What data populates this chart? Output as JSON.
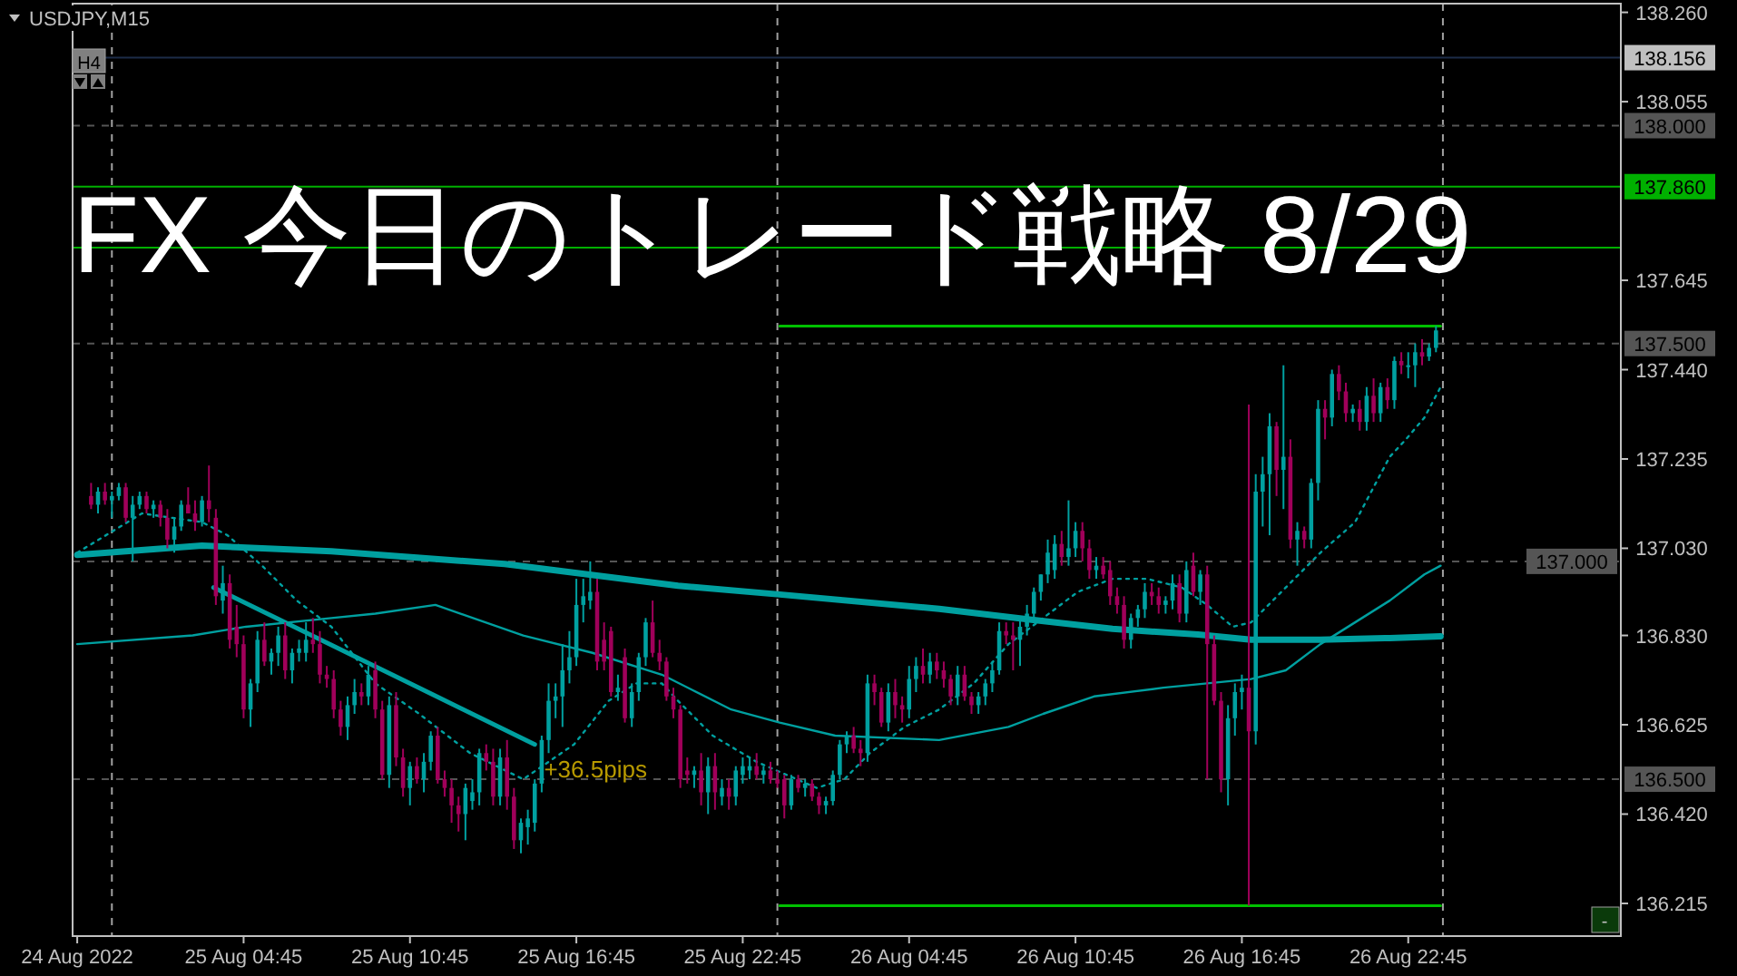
{
  "chart_data": {
    "type": "candlestick",
    "title": "FX 今日のトレード戦略 8/29",
    "subtitle": "USDJPY,M15",
    "xlim": [
      "2022-08-24T22:35",
      "2022-08-27T06:25"
    ],
    "ylim": [
      136.14,
      138.28
    ],
    "xticks": [
      {
        "value": "2022-08-24T22:45",
        "label": "24 Aug 2022"
      },
      {
        "value": "2022-08-25T04:45",
        "label": "25 Aug 04:45"
      },
      {
        "value": "2022-08-25T10:45",
        "label": "25 Aug 10:45"
      },
      {
        "value": "2022-08-25T16:45",
        "label": "25 Aug 16:45"
      },
      {
        "value": "2022-08-25T22:45",
        "label": "25 Aug 22:45"
      },
      {
        "value": "2022-08-26T04:45",
        "label": "26 Aug 04:45"
      },
      {
        "value": "2022-08-26T10:45",
        "label": "26 Aug 10:45"
      },
      {
        "value": "2022-08-26T16:45",
        "label": "26 Aug 16:45"
      },
      {
        "value": "2022-08-26T22:45",
        "label": "26 Aug 22:45"
      }
    ],
    "yticks": [
      {
        "value": 136.215,
        "label": "136.215"
      },
      {
        "value": 136.42,
        "label": "136.420"
      },
      {
        "value": 136.625,
        "label": "136.625"
      },
      {
        "value": 136.83,
        "label": "136.830"
      },
      {
        "value": 137.03,
        "label": "137.030"
      },
      {
        "value": 137.235,
        "label": "137.235"
      },
      {
        "value": 137.44,
        "label": "137.440"
      },
      {
        "value": 137.645,
        "label": "137.645"
      },
      {
        "value": 138.055,
        "label": "138.055"
      },
      {
        "value": 138.26,
        "label": "138.260"
      }
    ],
    "x": [
      "2022-08-24T23:15",
      "2022-08-24T23:30",
      "2022-08-24T23:45",
      "2022-08-25T00:00",
      "2022-08-25T00:15",
      "2022-08-25T00:30",
      "2022-08-25T00:45",
      "2022-08-25T01:00",
      "2022-08-25T01:15",
      "2022-08-25T01:30",
      "2022-08-25T01:45",
      "2022-08-25T02:00",
      "2022-08-25T02:15",
      "2022-08-25T02:30",
      "2022-08-25T02:45",
      "2022-08-25T03:00",
      "2022-08-25T03:15",
      "2022-08-25T03:30",
      "2022-08-25T03:45",
      "2022-08-25T04:00",
      "2022-08-25T04:15",
      "2022-08-25T04:30",
      "2022-08-25T04:45",
      "2022-08-25T05:00",
      "2022-08-25T05:15",
      "2022-08-25T05:30",
      "2022-08-25T05:45",
      "2022-08-25T06:00",
      "2022-08-25T06:15",
      "2022-08-25T06:30",
      "2022-08-25T06:45",
      "2022-08-25T07:00",
      "2022-08-25T07:15",
      "2022-08-25T07:30",
      "2022-08-25T07:45",
      "2022-08-25T08:00",
      "2022-08-25T08:15",
      "2022-08-25T08:30",
      "2022-08-25T08:45",
      "2022-08-25T09:00",
      "2022-08-25T09:15",
      "2022-08-25T09:30",
      "2022-08-25T09:45",
      "2022-08-25T10:00",
      "2022-08-25T10:15",
      "2022-08-25T10:30",
      "2022-08-25T10:45",
      "2022-08-25T11:00",
      "2022-08-25T11:15",
      "2022-08-25T11:30",
      "2022-08-25T11:45",
      "2022-08-25T12:00",
      "2022-08-25T12:15",
      "2022-08-25T12:30",
      "2022-08-25T12:45",
      "2022-08-25T13:00",
      "2022-08-25T13:15",
      "2022-08-25T13:30",
      "2022-08-25T13:45",
      "2022-08-25T14:00",
      "2022-08-25T14:15",
      "2022-08-25T14:30",
      "2022-08-25T14:45",
      "2022-08-25T15:00",
      "2022-08-25T15:15",
      "2022-08-25T15:30",
      "2022-08-25T15:45",
      "2022-08-25T16:00",
      "2022-08-25T16:15",
      "2022-08-25T16:30",
      "2022-08-25T16:45",
      "2022-08-25T17:00",
      "2022-08-25T17:15",
      "2022-08-25T17:30",
      "2022-08-25T17:45",
      "2022-08-25T18:00",
      "2022-08-25T18:15",
      "2022-08-25T18:30",
      "2022-08-25T18:45",
      "2022-08-25T19:00",
      "2022-08-25T19:15",
      "2022-08-25T19:30",
      "2022-08-25T19:45",
      "2022-08-25T20:00",
      "2022-08-25T20:15",
      "2022-08-25T20:30",
      "2022-08-25T20:45",
      "2022-08-25T21:00",
      "2022-08-25T21:15",
      "2022-08-25T21:30",
      "2022-08-25T21:45",
      "2022-08-25T22:00",
      "2022-08-25T22:15",
      "2022-08-25T22:30",
      "2022-08-25T22:45",
      "2022-08-25T23:00",
      "2022-08-25T23:15",
      "2022-08-25T23:30",
      "2022-08-25T23:45",
      "2022-08-26T00:00",
      "2022-08-26T00:15",
      "2022-08-26T00:30",
      "2022-08-26T00:45",
      "2022-08-26T01:00",
      "2022-08-26T01:15",
      "2022-08-26T01:30",
      "2022-08-26T01:45",
      "2022-08-26T02:00",
      "2022-08-26T02:15",
      "2022-08-26T02:30",
      "2022-08-26T02:45",
      "2022-08-26T03:00",
      "2022-08-26T03:15",
      "2022-08-26T03:30",
      "2022-08-26T03:45",
      "2022-08-26T04:00",
      "2022-08-26T04:15",
      "2022-08-26T04:30",
      "2022-08-26T04:45",
      "2022-08-26T05:00",
      "2022-08-26T05:15",
      "2022-08-26T05:30",
      "2022-08-26T05:45",
      "2022-08-26T06:00",
      "2022-08-26T06:15",
      "2022-08-26T06:30",
      "2022-08-26T06:45",
      "2022-08-26T07:00",
      "2022-08-26T07:15",
      "2022-08-26T07:30",
      "2022-08-26T07:45",
      "2022-08-26T08:00",
      "2022-08-26T08:15",
      "2022-08-26T08:30",
      "2022-08-26T08:45",
      "2022-08-26T09:00",
      "2022-08-26T09:15",
      "2022-08-26T09:30",
      "2022-08-26T09:45",
      "2022-08-26T10:00",
      "2022-08-26T10:15",
      "2022-08-26T10:30",
      "2022-08-26T10:45",
      "2022-08-26T11:00",
      "2022-08-26T11:15",
      "2022-08-26T11:30",
      "2022-08-26T11:45",
      "2022-08-26T12:00",
      "2022-08-26T12:15",
      "2022-08-26T12:30",
      "2022-08-26T12:45",
      "2022-08-26T13:00",
      "2022-08-26T13:15",
      "2022-08-26T13:30",
      "2022-08-26T13:45",
      "2022-08-26T14:00",
      "2022-08-26T14:15",
      "2022-08-26T14:30",
      "2022-08-26T14:45",
      "2022-08-26T15:00",
      "2022-08-26T15:15",
      "2022-08-26T15:30",
      "2022-08-26T15:45",
      "2022-08-26T16:00",
      "2022-08-26T16:15",
      "2022-08-26T16:30",
      "2022-08-26T16:45",
      "2022-08-26T17:00",
      "2022-08-26T17:15",
      "2022-08-26T17:30",
      "2022-08-26T17:45",
      "2022-08-26T18:00",
      "2022-08-26T18:15",
      "2022-08-26T18:30",
      "2022-08-26T18:45",
      "2022-08-26T19:00",
      "2022-08-26T19:15",
      "2022-08-26T19:30",
      "2022-08-26T19:45",
      "2022-08-26T20:00",
      "2022-08-26T20:15",
      "2022-08-26T20:30",
      "2022-08-26T20:45",
      "2022-08-26T21:00",
      "2022-08-26T21:15",
      "2022-08-26T21:30",
      "2022-08-26T21:45",
      "2022-08-26T22:00",
      "2022-08-26T22:15",
      "2022-08-26T22:30",
      "2022-08-26T22:45",
      "2022-08-26T23:00",
      "2022-08-26T23:15",
      "2022-08-26T23:30",
      "2022-08-26T23:45"
    ],
    "ohlc": [
      [
        137.15,
        137.18,
        137.12,
        137.13
      ],
      [
        137.13,
        137.17,
        137.11,
        137.16
      ],
      [
        137.16,
        137.18,
        137.13,
        137.14
      ],
      [
        137.14,
        137.16,
        137.1,
        137.15
      ],
      [
        137.15,
        137.18,
        137.14,
        137.17
      ],
      [
        137.17,
        137.18,
        137.09,
        137.1
      ],
      [
        137.1,
        137.15,
        137.0,
        137.13
      ],
      [
        137.13,
        137.16,
        137.12,
        137.15
      ],
      [
        137.15,
        137.16,
        137.11,
        137.12
      ],
      [
        137.12,
        137.14,
        137.1,
        137.13
      ],
      [
        137.13,
        137.14,
        137.08,
        137.1
      ],
      [
        137.1,
        137.12,
        137.03,
        137.05
      ],
      [
        137.05,
        137.1,
        137.02,
        137.08
      ],
      [
        137.08,
        137.14,
        137.07,
        137.13
      ],
      [
        137.13,
        137.17,
        137.11,
        137.11
      ],
      [
        137.11,
        137.14,
        137.07,
        137.09
      ],
      [
        137.09,
        137.15,
        137.08,
        137.14
      ],
      [
        137.14,
        137.22,
        137.09,
        137.12
      ],
      [
        137.1,
        137.12,
        136.9,
        136.92
      ],
      [
        136.91,
        136.99,
        136.88,
        136.95
      ],
      [
        136.95,
        136.97,
        136.8,
        136.82
      ],
      [
        136.85,
        136.9,
        136.78,
        136.81
      ],
      [
        136.81,
        136.83,
        136.64,
        136.66
      ],
      [
        136.66,
        136.73,
        136.62,
        136.72
      ],
      [
        136.72,
        136.84,
        136.7,
        136.82
      ],
      [
        136.82,
        136.86,
        136.76,
        136.77
      ],
      [
        136.77,
        136.8,
        136.74,
        136.79
      ],
      [
        136.79,
        136.85,
        136.76,
        136.83
      ],
      [
        136.83,
        136.86,
        136.73,
        136.75
      ],
      [
        136.75,
        136.8,
        136.72,
        136.79
      ],
      [
        136.79,
        136.82,
        136.77,
        136.8
      ],
      [
        136.79,
        136.86,
        136.77,
        136.82
      ],
      [
        136.82,
        136.87,
        136.79,
        136.81
      ],
      [
        136.81,
        136.84,
        136.72,
        136.74
      ],
      [
        136.74,
        136.76,
        136.71,
        136.73
      ],
      [
        136.73,
        136.75,
        136.64,
        136.66
      ],
      [
        136.66,
        136.68,
        136.6,
        136.62
      ],
      [
        136.62,
        136.69,
        136.59,
        136.67
      ],
      [
        136.67,
        136.73,
        136.65,
        136.7
      ],
      [
        136.7,
        136.72,
        136.67,
        136.69
      ],
      [
        136.69,
        136.76,
        136.67,
        136.74
      ],
      [
        136.75,
        136.77,
        136.64,
        136.66
      ],
      [
        136.66,
        136.68,
        136.5,
        136.51
      ],
      [
        136.51,
        136.69,
        136.48,
        136.67
      ],
      [
        136.67,
        136.7,
        136.53,
        136.55
      ],
      [
        136.55,
        136.57,
        136.46,
        136.48
      ],
      [
        136.48,
        136.54,
        136.44,
        136.53
      ],
      [
        136.53,
        136.55,
        136.49,
        136.5
      ],
      [
        136.5,
        136.56,
        136.47,
        136.54
      ],
      [
        136.54,
        136.61,
        136.52,
        136.6
      ],
      [
        136.6,
        136.62,
        136.49,
        136.5
      ],
      [
        136.5,
        136.52,
        136.46,
        136.48
      ],
      [
        136.48,
        136.5,
        136.4,
        136.44
      ],
      [
        136.44,
        136.46,
        136.38,
        136.42
      ],
      [
        136.42,
        136.49,
        136.36,
        136.48
      ],
      [
        136.45,
        136.5,
        136.43,
        136.47
      ],
      [
        136.47,
        136.57,
        136.44,
        136.56
      ],
      [
        136.56,
        136.58,
        136.52,
        136.54
      ],
      [
        136.54,
        136.57,
        136.44,
        136.46
      ],
      [
        136.46,
        136.57,
        136.44,
        136.55
      ],
      [
        136.55,
        136.59,
        136.43,
        136.46
      ],
      [
        136.46,
        136.48,
        136.34,
        136.36
      ],
      [
        136.36,
        136.41,
        136.33,
        136.4
      ],
      [
        136.39,
        136.43,
        136.35,
        136.41
      ],
      [
        136.4,
        136.5,
        136.38,
        136.49
      ],
      [
        136.49,
        136.6,
        136.47,
        136.59
      ],
      [
        136.59,
        136.72,
        136.56,
        136.68
      ],
      [
        136.68,
        136.72,
        136.64,
        136.69
      ],
      [
        136.69,
        136.81,
        136.62,
        136.75
      ],
      [
        136.75,
        136.84,
        136.72,
        136.78
      ],
      [
        136.78,
        136.96,
        136.76,
        136.9
      ],
      [
        136.9,
        136.96,
        136.86,
        136.92
      ],
      [
        136.91,
        137.0,
        136.89,
        136.93
      ],
      [
        136.93,
        136.96,
        136.75,
        136.77
      ],
      [
        136.82,
        136.86,
        136.75,
        136.77
      ],
      [
        136.84,
        136.85,
        136.69,
        136.7
      ],
      [
        136.7,
        136.74,
        136.68,
        136.71
      ],
      [
        136.78,
        136.8,
        136.63,
        136.64
      ],
      [
        136.64,
        136.72,
        136.62,
        136.7
      ],
      [
        136.7,
        136.79,
        136.68,
        136.78
      ],
      [
        136.78,
        136.87,
        136.76,
        136.86
      ],
      [
        136.86,
        136.91,
        136.78,
        136.79
      ],
      [
        136.79,
        136.82,
        136.75,
        136.77
      ],
      [
        136.77,
        136.78,
        136.68,
        136.69
      ],
      [
        136.69,
        136.71,
        136.64,
        136.66
      ],
      [
        136.66,
        136.67,
        136.48,
        136.5
      ],
      [
        136.52,
        136.55,
        136.49,
        136.51
      ],
      [
        136.51,
        136.53,
        136.48,
        136.52
      ],
      [
        136.52,
        136.56,
        136.44,
        136.47
      ],
      [
        136.47,
        136.55,
        136.42,
        136.53
      ],
      [
        136.53,
        136.56,
        136.43,
        136.47
      ],
      [
        136.46,
        136.5,
        136.44,
        136.48
      ],
      [
        136.48,
        136.5,
        136.43,
        136.46
      ],
      [
        136.46,
        136.53,
        136.44,
        136.52
      ],
      [
        136.51,
        136.55,
        136.49,
        136.53
      ],
      [
        136.52,
        136.55,
        136.5,
        136.53
      ],
      [
        136.53,
        136.56,
        136.5,
        136.51
      ],
      [
        136.51,
        136.53,
        136.49,
        136.52
      ],
      [
        136.52,
        136.54,
        136.49,
        136.5
      ],
      [
        136.5,
        136.52,
        136.48,
        136.49
      ],
      [
        136.5,
        136.51,
        136.41,
        136.44
      ],
      [
        136.44,
        136.51,
        136.43,
        136.5
      ],
      [
        136.5,
        136.51,
        136.47,
        136.48
      ],
      [
        136.48,
        136.5,
        136.46,
        136.49
      ],
      [
        136.49,
        136.5,
        136.45,
        136.46
      ],
      [
        136.46,
        136.47,
        136.42,
        136.44
      ],
      [
        136.44,
        136.46,
        136.42,
        136.45
      ],
      [
        136.45,
        136.52,
        136.44,
        136.51
      ],
      [
        136.51,
        136.59,
        136.5,
        136.58
      ],
      [
        136.58,
        136.61,
        136.56,
        136.6
      ],
      [
        136.6,
        136.62,
        136.56,
        136.57
      ],
      [
        136.57,
        136.59,
        136.53,
        136.56
      ],
      [
        136.56,
        136.74,
        136.54,
        136.72
      ],
      [
        136.72,
        136.74,
        136.67,
        136.7
      ],
      [
        136.7,
        136.71,
        136.62,
        136.63
      ],
      [
        136.63,
        136.72,
        136.61,
        136.7
      ],
      [
        136.7,
        136.73,
        136.64,
        136.67
      ],
      [
        136.67,
        136.69,
        136.63,
        136.66
      ],
      [
        136.66,
        136.76,
        136.64,
        136.73
      ],
      [
        136.73,
        136.78,
        136.7,
        136.76
      ],
      [
        136.76,
        136.8,
        136.72,
        136.74
      ],
      [
        136.74,
        136.79,
        136.72,
        136.77
      ],
      [
        136.77,
        136.79,
        136.73,
        136.75
      ],
      [
        136.75,
        136.77,
        136.71,
        136.73
      ],
      [
        136.73,
        136.74,
        136.67,
        136.69
      ],
      [
        136.69,
        136.76,
        136.67,
        136.74
      ],
      [
        136.74,
        136.76,
        136.68,
        136.69
      ],
      [
        136.69,
        136.7,
        136.65,
        136.67
      ],
      [
        136.67,
        136.7,
        136.65,
        136.69
      ],
      [
        136.69,
        136.73,
        136.67,
        136.72
      ],
      [
        136.72,
        136.77,
        136.7,
        136.75
      ],
      [
        136.75,
        136.86,
        136.74,
        136.84
      ],
      [
        136.84,
        136.86,
        136.81,
        136.83
      ],
      [
        136.83,
        136.86,
        136.75,
        136.82
      ],
      [
        136.82,
        136.87,
        136.76,
        136.85
      ],
      [
        136.85,
        136.9,
        136.83,
        136.88
      ],
      [
        136.88,
        136.94,
        136.86,
        136.93
      ],
      [
        136.93,
        136.97,
        136.91,
        136.97
      ],
      [
        136.97,
        137.05,
        136.95,
        137.02
      ],
      [
        136.98,
        137.06,
        136.96,
        137.04
      ],
      [
        137.04,
        137.07,
        136.99,
        137.01
      ],
      [
        137.01,
        137.14,
        136.99,
        137.03
      ],
      [
        137.03,
        137.09,
        137.01,
        137.07
      ],
      [
        137.07,
        137.09,
        137.0,
        137.03
      ],
      [
        137.03,
        137.05,
        136.96,
        136.98
      ],
      [
        136.98,
        137.01,
        136.96,
        136.99
      ],
      [
        136.99,
        137.01,
        136.96,
        136.97
      ],
      [
        136.98,
        137.0,
        136.9,
        136.92
      ],
      [
        136.92,
        136.94,
        136.88,
        136.9
      ],
      [
        136.9,
        136.92,
        136.8,
        136.82
      ],
      [
        136.82,
        136.88,
        136.8,
        136.87
      ],
      [
        136.87,
        136.9,
        136.85,
        136.89
      ],
      [
        136.89,
        136.95,
        136.87,
        136.93
      ],
      [
        136.93,
        136.95,
        136.9,
        136.92
      ],
      [
        136.92,
        136.94,
        136.88,
        136.9
      ],
      [
        136.9,
        136.92,
        136.88,
        136.91
      ],
      [
        136.91,
        136.97,
        136.89,
        136.95
      ],
      [
        136.95,
        136.97,
        136.86,
        136.88
      ],
      [
        136.88,
        137.0,
        136.86,
        136.98
      ],
      [
        136.99,
        137.02,
        136.92,
        136.93
      ],
      [
        136.93,
        136.98,
        136.9,
        136.97
      ],
      [
        136.97,
        136.99,
        136.5,
        136.81
      ],
      [
        136.81,
        136.83,
        136.67,
        136.68
      ],
      [
        136.68,
        136.7,
        136.47,
        136.5
      ],
      [
        136.5,
        136.67,
        136.44,
        136.64
      ],
      [
        136.64,
        136.72,
        136.6,
        136.7
      ],
      [
        136.7,
        136.74,
        136.66,
        136.71
      ],
      [
        136.71,
        137.36,
        136.21,
        136.61
      ],
      [
        136.61,
        137.2,
        136.58,
        137.16
      ],
      [
        137.16,
        137.24,
        137.08,
        137.2
      ],
      [
        137.2,
        137.34,
        137.06,
        137.31
      ],
      [
        137.31,
        137.32,
        137.15,
        137.21
      ],
      [
        137.21,
        137.45,
        137.12,
        137.24
      ],
      [
        137.24,
        137.28,
        137.03,
        137.05
      ],
      [
        137.05,
        137.09,
        136.99,
        137.07
      ],
      [
        137.07,
        137.08,
        137.03,
        137.05
      ],
      [
        137.05,
        137.19,
        137.03,
        137.18
      ],
      [
        137.18,
        137.37,
        137.14,
        137.35
      ],
      [
        137.35,
        137.37,
        137.28,
        137.33
      ],
      [
        137.33,
        137.44,
        137.31,
        137.43
      ],
      [
        137.43,
        137.45,
        137.37,
        137.39
      ],
      [
        137.39,
        137.41,
        137.32,
        137.34
      ],
      [
        137.34,
        137.36,
        137.32,
        137.35
      ],
      [
        137.35,
        137.37,
        137.3,
        137.32
      ],
      [
        137.32,
        137.4,
        137.3,
        137.38
      ],
      [
        137.38,
        137.42,
        137.32,
        137.34
      ],
      [
        137.34,
        137.41,
        137.32,
        137.4
      ],
      [
        137.4,
        137.42,
        137.35,
        137.37
      ],
      [
        137.37,
        137.47,
        137.35,
        137.46
      ],
      [
        137.46,
        137.48,
        137.43,
        137.45
      ],
      [
        137.45,
        137.48,
        137.42,
        137.45
      ],
      [
        137.45,
        137.5,
        137.4,
        137.48
      ],
      [
        137.48,
        137.51,
        137.45,
        137.47
      ],
      [
        137.47,
        137.5,
        137.46,
        137.49
      ],
      [
        137.49,
        137.54,
        137.48,
        137.53
      ]
    ],
    "series": [
      {
        "type": "line",
        "color": "#00a0a0",
        "x": [
          "2022-08-24T22:45",
          "2022-08-25T03:15",
          "2022-08-25T07:55",
          "2022-08-25T14:10",
          "2022-08-25T20:25",
          "2022-08-26T00:05",
          "2022-08-26T05:50",
          "2022-08-26T09:10",
          "2022-08-26T12:05",
          "2022-08-26T15:10",
          "2022-08-26T17:05",
          "2022-08-26T19:35",
          "2022-08-26T22:05",
          "2022-08-26T23:55"
        ],
        "values": [
          137.015,
          137.036,
          137.023,
          136.994,
          136.944,
          136.924,
          136.891,
          136.866,
          136.845,
          136.832,
          136.82,
          136.82,
          136.824,
          136.828
        ]
      },
      {
        "type": "line",
        "color": "#00a0a0",
        "x": [
          "2022-08-24T22:45",
          "2022-08-25T02:55",
          "2022-08-25T04:50",
          "2022-08-25T07:55",
          "2022-08-25T09:30",
          "2022-08-25T11:40",
          "2022-08-25T14:50",
          "2022-08-25T17:20",
          "2022-08-25T19:50",
          "2022-08-25T22:20",
          "2022-08-26T00:05",
          "2022-08-26T02:05",
          "2022-08-26T05:50",
          "2022-08-26T08:20",
          "2022-08-26T09:35",
          "2022-08-26T11:25",
          "2022-08-26T13:55",
          "2022-08-26T17:05",
          "2022-08-26T18:20",
          "2022-08-26T19:35",
          "2022-08-26T20:50",
          "2022-08-26T22:05",
          "2022-08-26T23:20",
          "2022-08-26T23:55"
        ],
        "values": [
          136.81,
          136.83,
          136.85,
          136.87,
          136.88,
          136.9,
          136.83,
          136.79,
          136.74,
          136.66,
          136.63,
          136.6,
          136.59,
          136.62,
          136.65,
          136.69,
          136.71,
          136.73,
          136.75,
          136.81,
          136.86,
          136.91,
          136.97,
          136.99
        ]
      },
      {
        "type": "line",
        "color": "#00a0a0",
        "line_style": "dotted",
        "x": [
          "2022-08-24T22:45",
          "2022-08-25T01:05",
          "2022-08-25T03:15",
          "2022-08-25T04:10",
          "2022-08-25T05:25",
          "2022-08-25T06:40",
          "2022-08-25T07:55",
          "2022-08-25T09:30",
          "2022-08-25T11:05",
          "2022-08-25T12:55",
          "2022-08-25T14:50",
          "2022-08-25T16:40",
          "2022-08-25T17:55",
          "2022-08-25T18:55",
          "2022-08-25T19:50",
          "2022-08-25T20:25",
          "2022-08-25T21:40",
          "2022-08-25T23:15",
          "2022-08-26T01:25",
          "2022-08-26T02:25",
          "2022-08-26T03:20",
          "2022-08-26T04:35",
          "2022-08-26T05:50",
          "2022-08-26T07:05",
          "2022-08-26T08:20",
          "2022-08-26T09:35",
          "2022-08-26T10:50",
          "2022-08-26T12:05",
          "2022-08-26T13:20",
          "2022-08-26T14:35",
          "2022-08-26T15:30",
          "2022-08-26T16:25",
          "2022-08-26T17:05",
          "2022-08-26T18:20",
          "2022-08-26T19:35",
          "2022-08-26T20:50",
          "2022-08-26T21:25",
          "2022-08-26T22:05",
          "2022-08-26T22:40",
          "2022-08-26T23:20",
          "2022-08-26T23:55"
        ],
        "values": [
          137.02,
          137.11,
          137.09,
          137.06,
          136.99,
          136.91,
          136.85,
          136.72,
          136.65,
          136.56,
          136.5,
          136.58,
          136.68,
          136.72,
          136.72,
          136.68,
          136.6,
          136.54,
          136.48,
          136.5,
          136.56,
          136.62,
          136.66,
          136.72,
          136.81,
          136.87,
          136.93,
          136.96,
          136.96,
          136.94,
          136.9,
          136.85,
          136.86,
          136.94,
          137.02,
          137.09,
          137.16,
          137.24,
          137.28,
          137.33,
          137.4
        ]
      },
      {
        "type": "line",
        "color": "#00a0a0",
        "x": [
          "2022-08-25T03:40",
          "2022-08-25T15:15"
        ],
        "values": [
          136.94,
          136.58
        ]
      },
      {
        "type": "line",
        "color": "#00c000",
        "x": [
          "2022-08-26T00:05",
          "2022-08-26T23:55"
        ],
        "values": [
          137.54,
          137.54
        ]
      },
      {
        "type": "line",
        "color": "#00c000",
        "x": [
          "2022-08-26T00:05",
          "2022-08-26T23:55"
        ],
        "values": [
          136.21,
          136.21
        ]
      }
    ],
    "ref_lines": [
      {
        "axis": "x",
        "value": "2022-08-25T00:00",
        "color": "#a0a0a0",
        "line_style": "dashed"
      },
      {
        "axis": "x",
        "value": "2022-08-26T00:00",
        "color": "#a0a0a0",
        "line_style": "dashed"
      },
      {
        "axis": "x",
        "value": "2022-08-27T00:00",
        "color": "#a0a0a0",
        "line_style": "dashed"
      },
      {
        "axis": "y",
        "value": 138.156,
        "label": "138.156",
        "color": "#1c2c48"
      },
      {
        "axis": "y",
        "value": 138.0,
        "label": "138.000",
        "color": "#555555",
        "line_style": "dashed"
      },
      {
        "axis": "y",
        "value": 137.86,
        "label": "137.860",
        "color": "#00b000"
      },
      {
        "axis": "y",
        "value": 137.72,
        "color": "#00b000"
      },
      {
        "axis": "y",
        "value": 137.5,
        "label": "137.500",
        "color": "#555555",
        "line_style": "dashed"
      },
      {
        "axis": "y",
        "value": 137.0,
        "label": "137.000",
        "color": "#555555",
        "line_style": "dashed"
      },
      {
        "axis": "y",
        "value": 136.5,
        "label": "136.500",
        "color": "#555555",
        "line_style": "dashed"
      }
    ],
    "annotations": [
      {
        "text": "+36.5pips",
        "x": "2022-08-25T15:35",
        "y": 136.52
      },
      "H4",
      "-"
    ]
  }
}
